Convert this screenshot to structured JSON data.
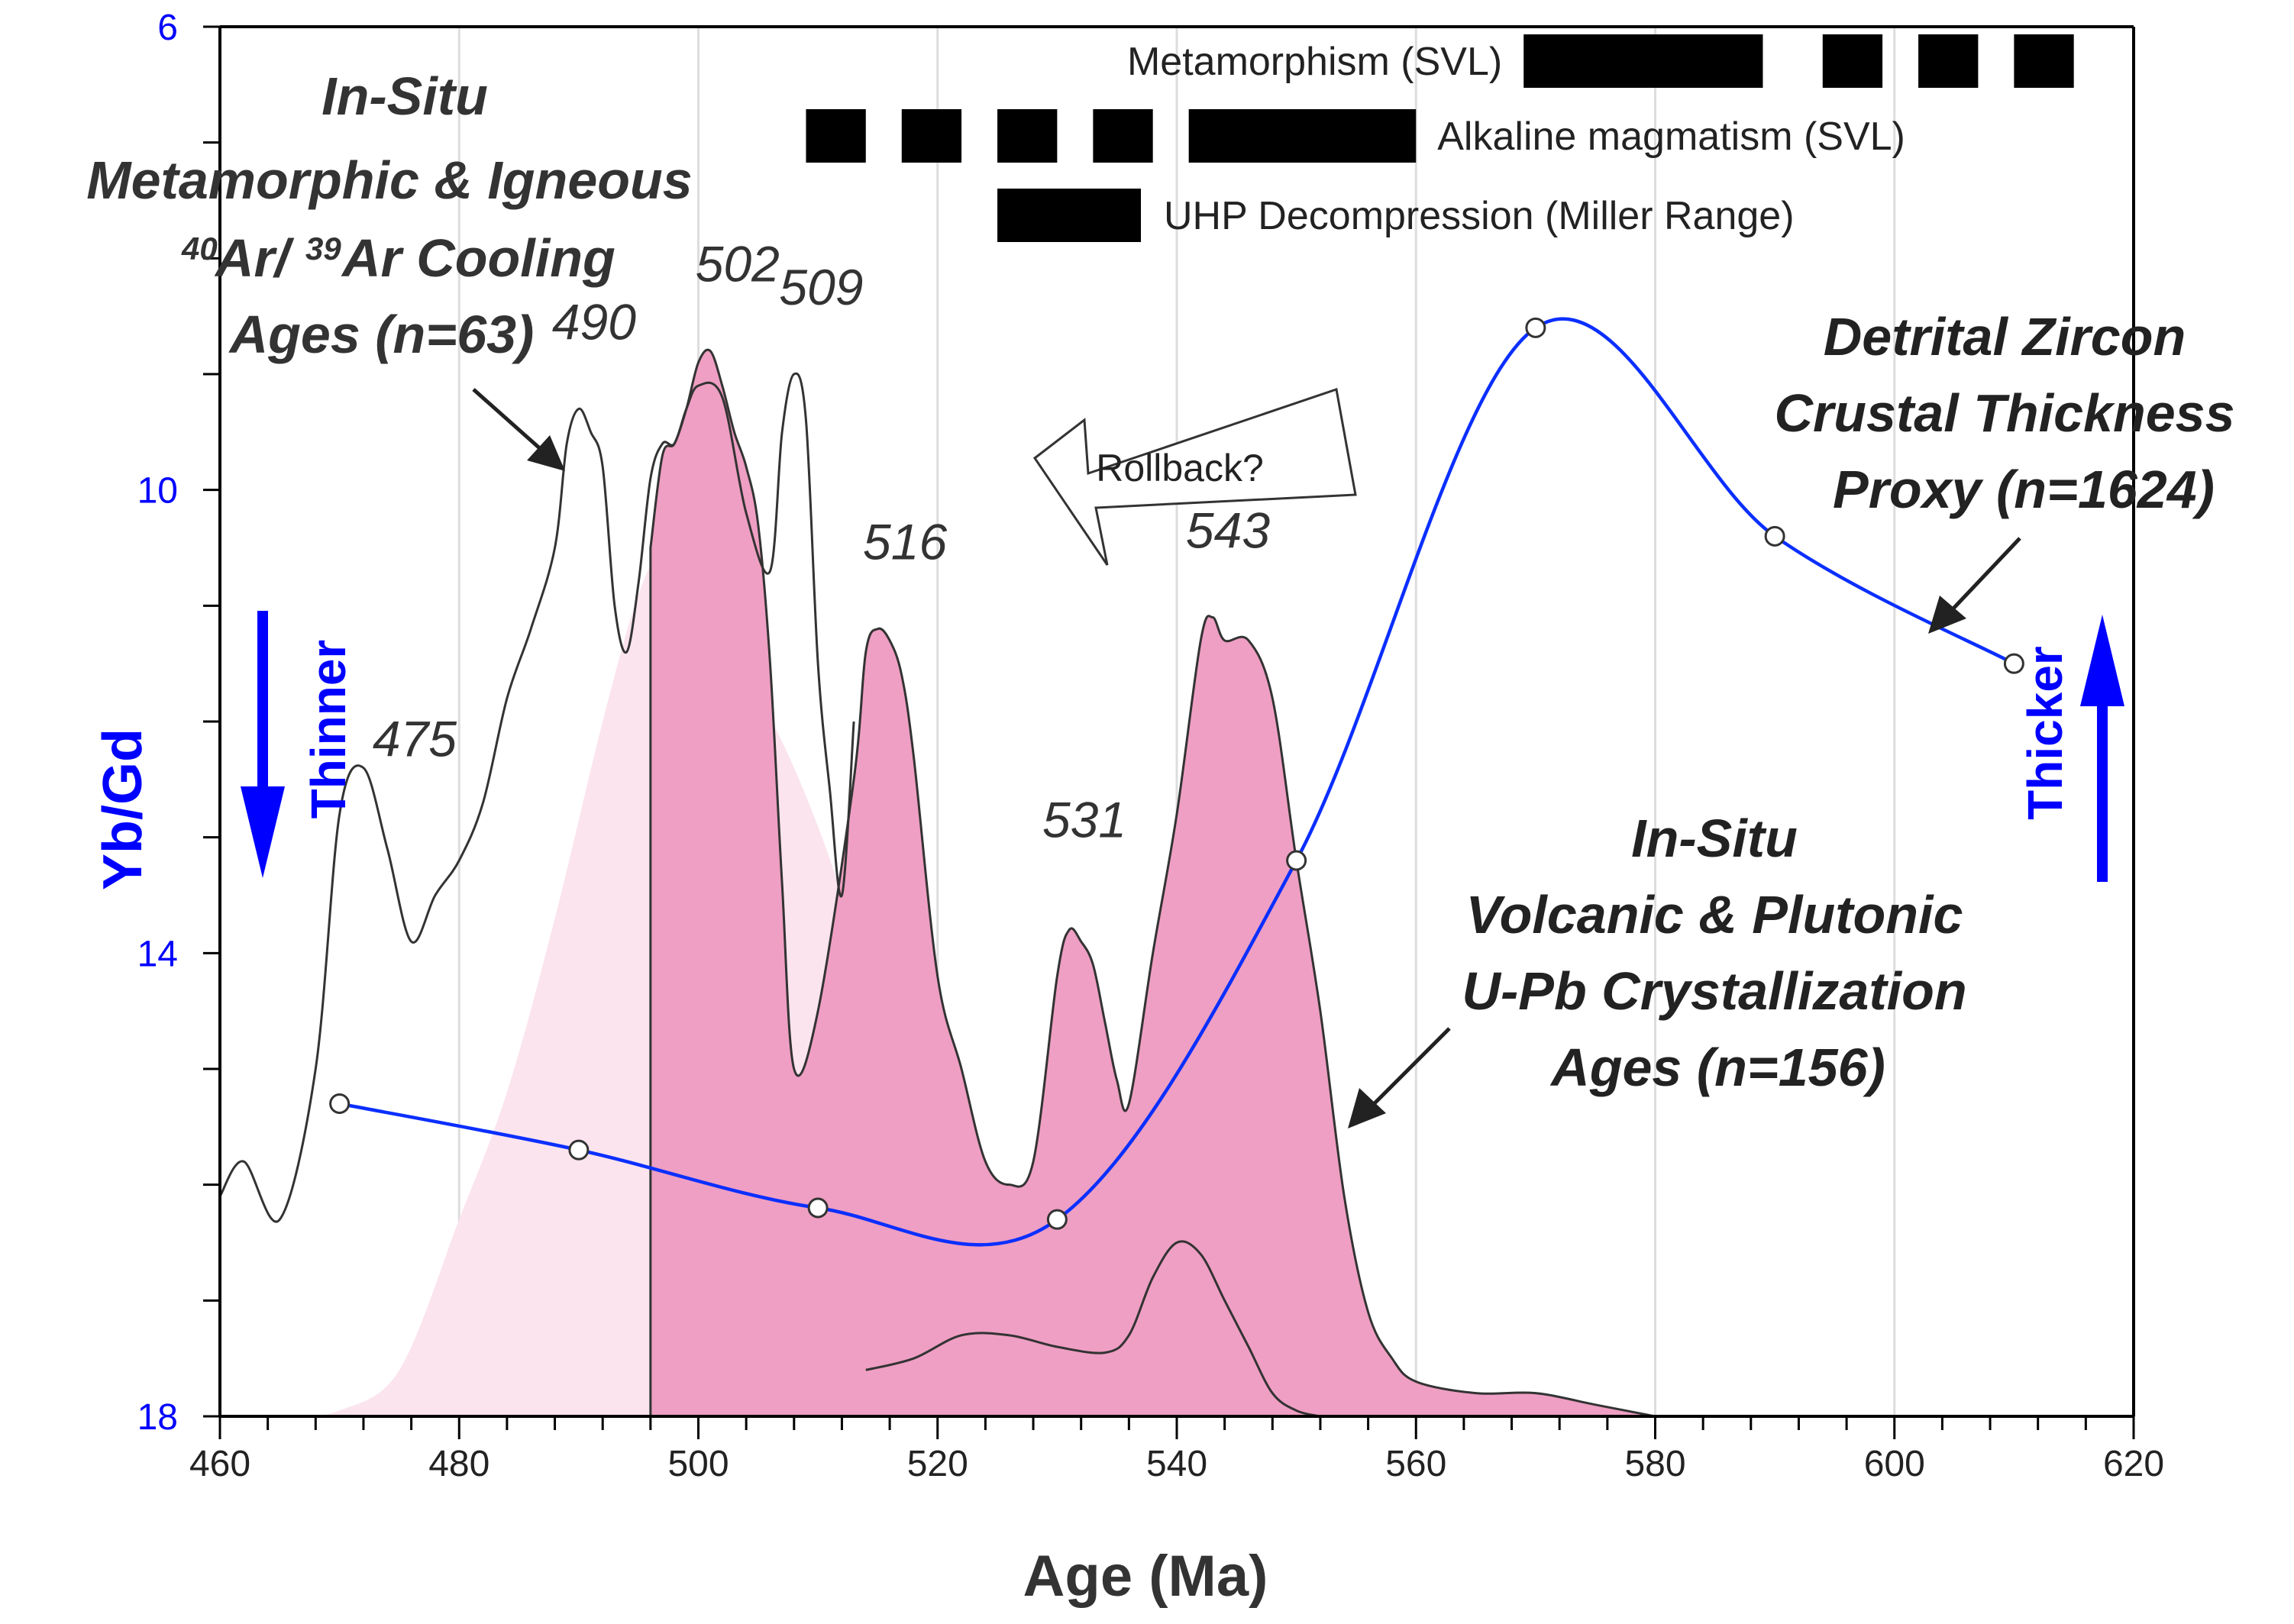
{
  "chart_data": {
    "type": "area",
    "xlabel": "Age (Ma)",
    "ylabel": "Yb/Gd",
    "xlim": [
      460,
      620
    ],
    "ylim": [
      6,
      18
    ],
    "y_axis_inverted": true,
    "grid": "vertical",
    "x_ticks": [
      "460",
      "480",
      "500",
      "520",
      "540",
      "560",
      "580",
      "600",
      "620"
    ],
    "y_ticks": [
      "6",
      "10",
      "14",
      "18"
    ],
    "accent_colors": {
      "proxy_line": "#0b2fff",
      "uPb_fill": "#ef9fc3",
      "arar_fill": "#fbe4ee",
      "axis_y": "#0000ff"
    },
    "series": [
      {
        "name": "Detrital Zircon Crustal Thickness Proxy (n=1624)",
        "kind": "line-with-markers",
        "x": [
          470,
          490,
          510,
          530,
          550,
          570,
          590,
          610
        ],
        "y": [
          15.3,
          15.7,
          16.2,
          16.3,
          13.2,
          8.6,
          10.4,
          11.5
        ]
      },
      {
        "name": "In-Situ Metamorphic & Igneous 40Ar/39Ar Cooling Ages (n=63)",
        "kind": "density-outline",
        "x": [
          460,
          462,
          465,
          468,
          470,
          472,
          474,
          476,
          478,
          480,
          482,
          484,
          486,
          488,
          489,
          490,
          491,
          492,
          493,
          494,
          495,
          496,
          497,
          498,
          499,
          500,
          502,
          504,
          506,
          507,
          508,
          509,
          510,
          511,
          512,
          513
        ],
        "y": [
          16.1,
          15.8,
          16.3,
          15.0,
          12.8,
          12.4,
          13.1,
          13.9,
          13.5,
          13.2,
          12.7,
          11.8,
          11.2,
          10.5,
          9.6,
          9.3,
          9.5,
          9.8,
          11.0,
          11.4,
          10.8,
          9.9,
          9.6,
          9.6,
          9.3,
          9.1,
          9.2,
          10.2,
          10.7,
          9.5,
          9.0,
          9.4,
          11.5,
          12.6,
          13.5,
          12.0
        ]
      },
      {
        "name": "In-Situ Volcanic & Plutonic U-Pb Crystallization Ages (n=156)",
        "kind": "density-filled",
        "x": [
          496,
          497,
          498,
          499,
          500,
          501,
          502,
          503,
          504,
          505,
          506,
          507,
          508,
          510,
          513,
          514,
          515,
          516,
          517,
          518,
          520,
          522,
          524,
          526,
          528,
          530,
          531,
          532,
          533,
          534,
          535,
          536,
          538,
          540,
          542,
          543,
          544,
          546,
          548,
          550,
          552,
          554,
          556,
          558,
          560,
          565,
          570,
          575,
          580
        ],
        "y": [
          10.5,
          9.7,
          9.6,
          9.3,
          8.9,
          8.8,
          9.1,
          9.5,
          9.8,
          10.3,
          11.5,
          13.4,
          15.0,
          14.5,
          12.5,
          11.4,
          11.2,
          11.3,
          11.6,
          12.3,
          14.2,
          15.0,
          15.8,
          16.0,
          15.8,
          14.2,
          13.8,
          13.9,
          14.1,
          14.6,
          15.1,
          15.3,
          14.0,
          12.8,
          11.3,
          11.1,
          11.3,
          11.3,
          11.8,
          13.2,
          14.5,
          16.1,
          17.1,
          17.5,
          17.7,
          17.8,
          17.8,
          17.9,
          18.0
        ]
      }
    ],
    "peak_labels": [
      "475",
      "490",
      "502",
      "509",
      "516",
      "531",
      "543"
    ],
    "bars": [
      {
        "label": "Metamorphism (SVL)",
        "segments": [
          [
            569,
            589
          ],
          [
            594,
            599
          ],
          [
            602,
            607
          ],
          [
            610,
            615
          ]
        ]
      },
      {
        "label": "Alkaline magmatism (SVL)",
        "segments": [
          [
            509,
            514
          ],
          [
            517,
            522
          ],
          [
            525,
            530
          ],
          [
            533,
            538
          ],
          [
            541,
            560
          ]
        ]
      },
      {
        "label": "UHP Decompression (Miller Range)",
        "segments": [
          [
            525,
            537
          ]
        ]
      }
    ],
    "annotations": {
      "arar_title": [
        "In-Situ",
        "Metamorphic & Igneous",
        "Ar/",
        "Ar Cooling",
        "Ages (n=63)"
      ],
      "arar_superscripts": [
        "40",
        "39"
      ],
      "proxy_title": [
        "Detrital Zircon",
        "Crustal Thickness",
        "Proxy (n=1624)"
      ],
      "upb_title": [
        "In-Situ",
        "Volcanic & Plutonic",
        "U-Pb Crystallization",
        "Ages (n=156)"
      ],
      "rollback": "Rollback?",
      "thinner": "Thinner",
      "thicker": "Thicker"
    }
  }
}
